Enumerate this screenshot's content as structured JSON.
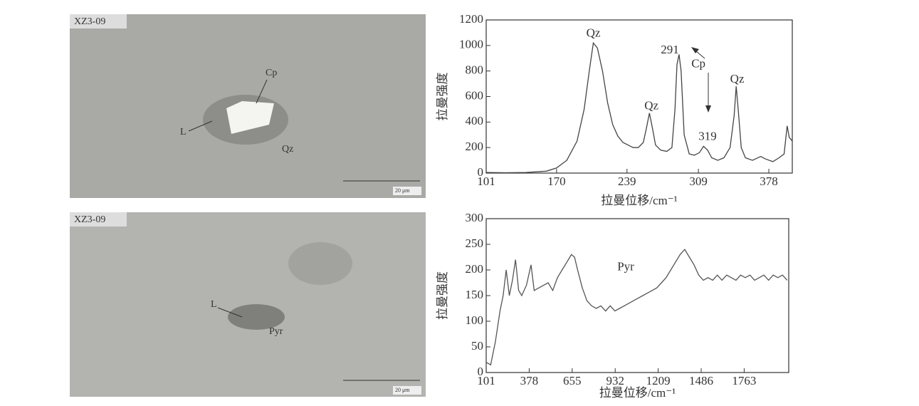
{
  "micrographs": [
    {
      "sample": "XZ3-09",
      "labels": [
        "Cp",
        "L",
        "Qz"
      ],
      "scale": "20 μm"
    },
    {
      "sample": "XZ3-09",
      "labels": [
        "L",
        "Pyr"
      ],
      "scale": "20 μm"
    }
  ],
  "chart_data": [
    {
      "type": "line",
      "xlabel": "拉曼位移/cm⁻¹",
      "ylabel": "拉曼强度",
      "color": "#444444",
      "xlim": [
        101,
        401
      ],
      "xticks": [
        101,
        170,
        239,
        309,
        378
      ],
      "ylim": [
        0,
        1200
      ],
      "yticks": [
        0,
        200,
        400,
        600,
        800,
        1000,
        1200
      ],
      "annotations": [
        {
          "text": "Qz",
          "x": 206,
          "y": 1090
        },
        {
          "text": "Qz",
          "x": 263,
          "y": 520
        },
        {
          "text": "291",
          "x": 281,
          "y": 960
        },
        {
          "text": "Cp",
          "x": 309,
          "y": 850
        },
        {
          "text": "319",
          "x": 318,
          "y": 280
        },
        {
          "text": "Qz",
          "x": 347,
          "y": 730
        }
      ],
      "x": [
        101,
        120,
        140,
        160,
        170,
        180,
        190,
        197,
        202,
        206,
        210,
        215,
        220,
        225,
        230,
        235,
        240,
        245,
        250,
        255,
        258,
        261,
        264,
        267,
        272,
        278,
        283,
        286,
        288,
        290,
        292,
        295,
        300,
        305,
        310,
        314,
        318,
        322,
        328,
        334,
        340,
        344,
        346,
        348,
        351,
        355,
        362,
        370,
        375,
        382,
        388,
        393,
        396,
        398,
        401
      ],
      "values": [
        5,
        3,
        5,
        15,
        40,
        100,
        250,
        500,
        800,
        1020,
        980,
        800,
        550,
        380,
        290,
        240,
        220,
        200,
        200,
        240,
        350,
        470,
        350,
        220,
        180,
        170,
        200,
        500,
        850,
        930,
        800,
        300,
        150,
        140,
        160,
        210,
        180,
        120,
        100,
        120,
        200,
        450,
        680,
        500,
        200,
        120,
        100,
        130,
        110,
        90,
        120,
        150,
        370,
        280,
        250
      ]
    },
    {
      "type": "line",
      "xlabel": "拉曼位移/cm⁻¹",
      "ylabel": "拉曼强度",
      "color": "#555555",
      "xlim": [
        101,
        2050
      ],
      "xticks": [
        101,
        378,
        655,
        932,
        1209,
        1486,
        1763
      ],
      "ylim": [
        0,
        300
      ],
      "yticks": [
        0,
        50,
        100,
        150,
        200,
        250,
        300
      ],
      "annotations": [
        {
          "text": "Pyr",
          "x": 1000,
          "y": 205
        }
      ],
      "x": [
        101,
        130,
        160,
        190,
        210,
        230,
        250,
        270,
        290,
        310,
        330,
        360,
        390,
        410,
        440,
        470,
        500,
        530,
        560,
        590,
        620,
        650,
        670,
        690,
        720,
        750,
        780,
        810,
        840,
        870,
        900,
        930,
        960,
        990,
        1020,
        1050,
        1080,
        1110,
        1140,
        1170,
        1200,
        1230,
        1260,
        1290,
        1320,
        1350,
        1380,
        1410,
        1440,
        1470,
        1500,
        1530,
        1560,
        1590,
        1620,
        1650,
        1680,
        1710,
        1740,
        1770,
        1800,
        1830,
        1860,
        1890,
        1920,
        1950,
        1980,
        2010,
        2040
      ],
      "values": [
        20,
        15,
        60,
        120,
        150,
        200,
        150,
        180,
        220,
        160,
        150,
        170,
        210,
        160,
        165,
        170,
        175,
        160,
        185,
        200,
        215,
        230,
        225,
        200,
        165,
        140,
        130,
        125,
        130,
        120,
        130,
        120,
        125,
        130,
        135,
        140,
        145,
        150,
        155,
        160,
        165,
        175,
        185,
        200,
        215,
        230,
        240,
        225,
        210,
        190,
        180,
        185,
        180,
        190,
        180,
        190,
        185,
        180,
        190,
        185,
        190,
        180,
        185,
        190,
        180,
        190,
        185,
        190,
        180
      ]
    }
  ]
}
